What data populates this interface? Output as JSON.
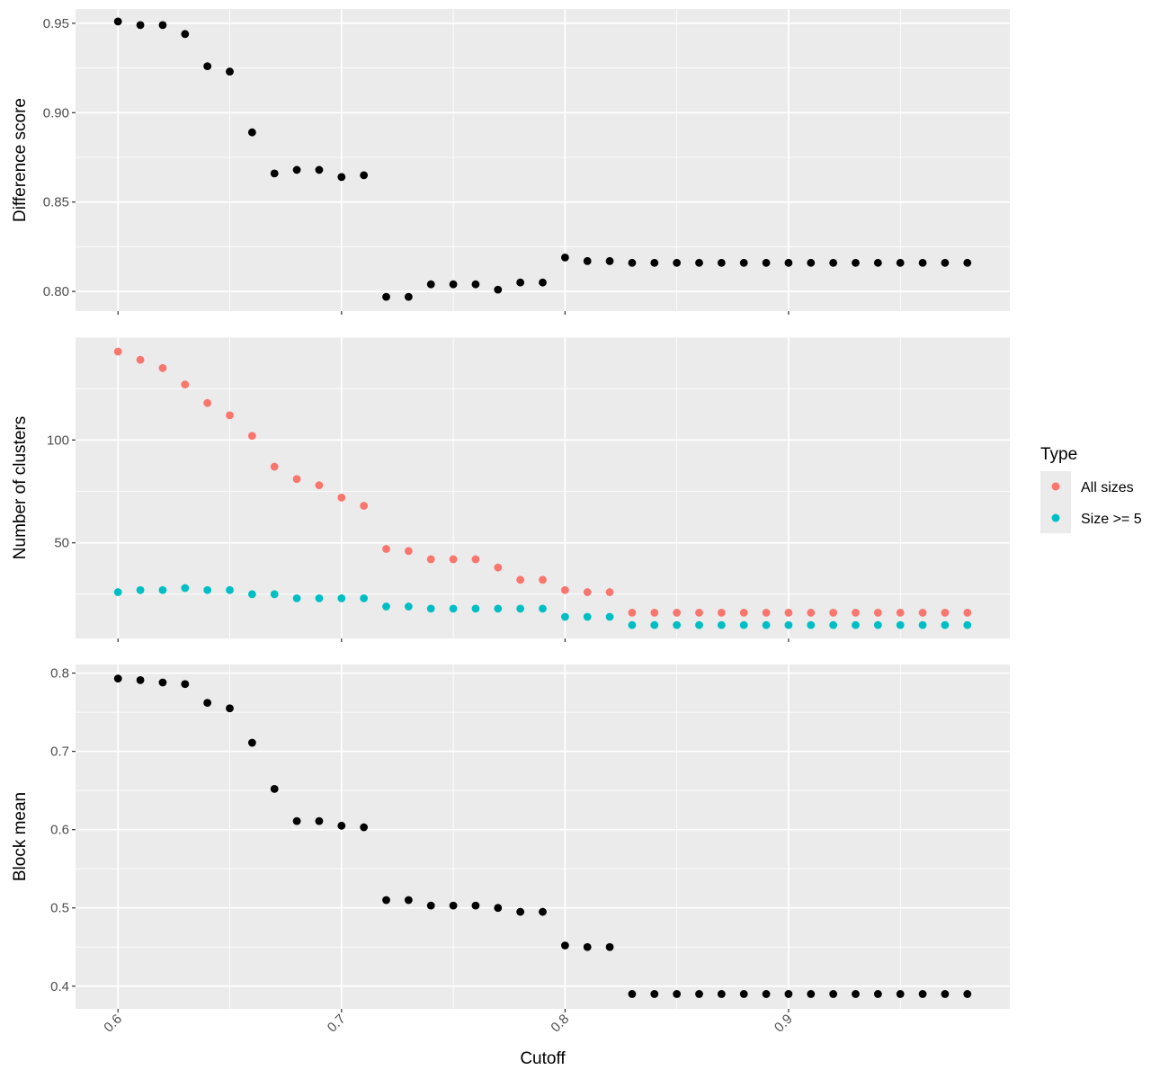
{
  "chart_data": [
    {
      "type": "scatter",
      "panel": "top",
      "xlabel": "",
      "ylabel": "Difference score",
      "xlim": [
        0.581,
        0.999
      ],
      "ylim": [
        0.789,
        0.958
      ],
      "grid": true,
      "y_ticks": [
        "0.80",
        "0.85",
        "0.90",
        "0.95"
      ],
      "series": [
        {
          "color": "#000000",
          "x": [
            0.6,
            0.61,
            0.62,
            0.63,
            0.64,
            0.65,
            0.66,
            0.67,
            0.68,
            0.69,
            0.7,
            0.71,
            0.72,
            0.73,
            0.74,
            0.75,
            0.76,
            0.77,
            0.78,
            0.79,
            0.8,
            0.81,
            0.82,
            0.83,
            0.84,
            0.85,
            0.86,
            0.87,
            0.88,
            0.89,
            0.9,
            0.91,
            0.92,
            0.93,
            0.94,
            0.95,
            0.96,
            0.97,
            0.98
          ],
          "y": [
            0.951,
            0.949,
            0.949,
            0.944,
            0.926,
            0.923,
            0.889,
            0.866,
            0.868,
            0.868,
            0.864,
            0.865,
            0.797,
            0.797,
            0.804,
            0.804,
            0.804,
            0.801,
            0.805,
            0.805,
            0.819,
            0.817,
            0.817,
            0.816,
            0.816,
            0.816,
            0.816,
            0.816,
            0.816,
            0.816,
            0.816,
            0.816,
            0.816,
            0.816,
            0.816,
            0.816,
            0.816,
            0.816,
            0.816
          ]
        }
      ]
    },
    {
      "type": "scatter",
      "panel": "middle",
      "xlabel": "",
      "ylabel": "Number of clusters",
      "xlim": [
        0.581,
        0.999
      ],
      "ylim": [
        3.5,
        150.0
      ],
      "grid": true,
      "y_ticks": [
        "50",
        "100"
      ],
      "legend": {
        "title": "Type",
        "placement": "right"
      },
      "series": [
        {
          "name": "All sizes",
          "color": "#F8766D",
          "x": [
            0.6,
            0.61,
            0.62,
            0.63,
            0.64,
            0.65,
            0.66,
            0.67,
            0.68,
            0.69,
            0.7,
            0.71,
            0.72,
            0.73,
            0.74,
            0.75,
            0.76,
            0.77,
            0.78,
            0.79,
            0.8,
            0.81,
            0.82,
            0.83,
            0.84,
            0.85,
            0.86,
            0.87,
            0.88,
            0.89,
            0.9,
            0.91,
            0.92,
            0.93,
            0.94,
            0.95,
            0.96,
            0.97,
            0.98
          ],
          "y": [
            143,
            139,
            135,
            127,
            118,
            112,
            102,
            87,
            81,
            78,
            72,
            68,
            47,
            46,
            42,
            42,
            42,
            38,
            32,
            32,
            27,
            26,
            26,
            16,
            16,
            16,
            16,
            16,
            16,
            16,
            16,
            16,
            16,
            16,
            16,
            16,
            16,
            16,
            16
          ]
        },
        {
          "name": "Size >= 5",
          "color": "#00BFC4",
          "x": [
            0.6,
            0.61,
            0.62,
            0.63,
            0.64,
            0.65,
            0.66,
            0.67,
            0.68,
            0.69,
            0.7,
            0.71,
            0.72,
            0.73,
            0.74,
            0.75,
            0.76,
            0.77,
            0.78,
            0.79,
            0.8,
            0.81,
            0.82,
            0.83,
            0.84,
            0.85,
            0.86,
            0.87,
            0.88,
            0.89,
            0.9,
            0.91,
            0.92,
            0.93,
            0.94,
            0.95,
            0.96,
            0.97,
            0.98
          ],
          "y": [
            26,
            27,
            27,
            28,
            27,
            27,
            25,
            25,
            23,
            23,
            23,
            23,
            19,
            19,
            18,
            18,
            18,
            18,
            18,
            18,
            14,
            14,
            14,
            10,
            10,
            10,
            10,
            10,
            10,
            10,
            10,
            10,
            10,
            10,
            10,
            10,
            10,
            10,
            10
          ]
        }
      ]
    },
    {
      "type": "scatter",
      "panel": "bottom",
      "xlabel": "Cutoff",
      "ylabel": "Block mean",
      "xlim": [
        0.581,
        0.999
      ],
      "ylim": [
        0.371,
        0.811
      ],
      "grid": true,
      "x_ticks": [
        "0.6",
        "0.7",
        "0.8",
        "0.9"
      ],
      "y_ticks": [
        "0.4",
        "0.5",
        "0.6",
        "0.7",
        "0.8"
      ],
      "series": [
        {
          "color": "#000000",
          "x": [
            0.6,
            0.61,
            0.62,
            0.63,
            0.64,
            0.65,
            0.66,
            0.67,
            0.68,
            0.69,
            0.7,
            0.71,
            0.72,
            0.73,
            0.74,
            0.75,
            0.76,
            0.77,
            0.78,
            0.79,
            0.8,
            0.81,
            0.82,
            0.83,
            0.84,
            0.85,
            0.86,
            0.87,
            0.88,
            0.89,
            0.9,
            0.91,
            0.92,
            0.93,
            0.94,
            0.95,
            0.96,
            0.97,
            0.98
          ],
          "y": [
            0.793,
            0.791,
            0.788,
            0.786,
            0.762,
            0.755,
            0.711,
            0.652,
            0.611,
            0.611,
            0.605,
            0.603,
            0.51,
            0.51,
            0.503,
            0.503,
            0.503,
            0.5,
            0.495,
            0.495,
            0.452,
            0.45,
            0.45,
            0.39,
            0.39,
            0.39,
            0.39,
            0.39,
            0.39,
            0.39,
            0.39,
            0.39,
            0.39,
            0.39,
            0.39,
            0.39,
            0.39,
            0.39,
            0.39
          ]
        }
      ]
    }
  ]
}
